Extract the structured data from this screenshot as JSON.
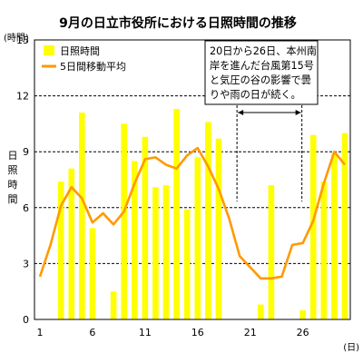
{
  "chart_data": {
    "type": "bar",
    "title": "9月の日立市役所における日照時間の推移",
    "y_unit_label": "(時間)",
    "ylabel": "日照時間",
    "x_unit_label": "(日)",
    "ylim": [
      0,
      15
    ],
    "yticks": [
      0,
      3,
      6,
      9,
      12,
      15
    ],
    "xticks": [
      1,
      6,
      11,
      16,
      21,
      26
    ],
    "grid": "horizontal dashed",
    "legend_position": "top-left",
    "series": [
      {
        "name": "日照時間",
        "kind": "bar",
        "color": "#ffff00",
        "x": [
          1,
          2,
          3,
          4,
          5,
          6,
          7,
          8,
          9,
          10,
          11,
          12,
          13,
          14,
          15,
          16,
          17,
          18,
          19,
          20,
          21,
          22,
          23,
          24,
          25,
          26,
          27,
          28,
          29,
          30
        ],
        "values": [
          0,
          0,
          7.4,
          8.1,
          11.1,
          4.9,
          0,
          1.5,
          10.5,
          8.5,
          9.8,
          7.1,
          7.2,
          11.3,
          5.9,
          8.7,
          10.6,
          9.7,
          0,
          0,
          0,
          0.8,
          7.2,
          0,
          0,
          0.5,
          9.9,
          7.4,
          8.9,
          10.0
        ]
      },
      {
        "name": "5日間移動平均",
        "kind": "line",
        "color": "#ff9900",
        "x": [
          1,
          2,
          3,
          4,
          5,
          6,
          7,
          8,
          9,
          10,
          11,
          12,
          13,
          14,
          15,
          16,
          17,
          18,
          19,
          20,
          21,
          22,
          23,
          24,
          25,
          26,
          27,
          28,
          29,
          30
        ],
        "values": [
          2.3,
          4.0,
          6.1,
          7.1,
          6.5,
          5.2,
          5.7,
          5.1,
          5.8,
          7.3,
          8.6,
          8.7,
          8.3,
          8.1,
          8.8,
          9.2,
          8.2,
          7.0,
          5.4,
          3.4,
          2.8,
          2.2,
          2.2,
          2.3,
          4.0,
          4.1,
          5.3,
          7.3,
          9.0,
          8.3
        ]
      }
    ],
    "annotation": {
      "lines": [
        "20日から26日、本州南",
        "岸を進んだ台風第15号",
        "と気圧の谷の影響で曇",
        "りや雨の日が続く。"
      ],
      "range": [
        20,
        26
      ]
    }
  }
}
